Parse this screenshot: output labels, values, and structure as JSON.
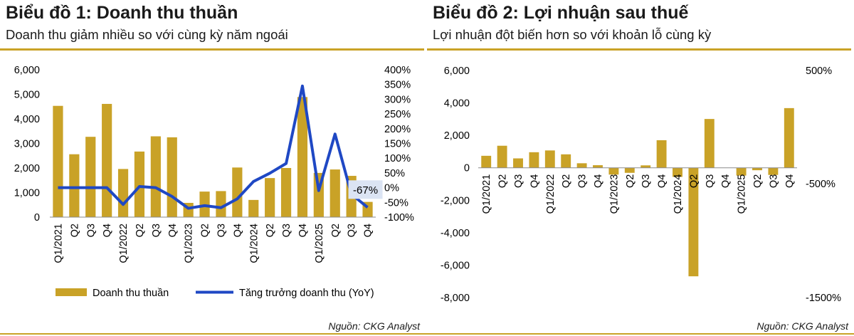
{
  "chart1": {
    "title": "Biểu đồ 1: Doanh thu thuần",
    "subtitle": "Doanh thu giảm nhiều so với cùng kỳ năm ngoái",
    "source": "Nguồn: CKG Analyst",
    "legend": {
      "bar": "Doanh thu thuần",
      "line": "Tăng trưởng doanh thu (YoY)"
    },
    "annotation": "-67%",
    "colors": {
      "bar": "#c9a227",
      "line": "#1f48c4",
      "annotation_bg": "#dbe4f3"
    }
  },
  "chart2": {
    "title": "Biểu đồ 2: Lợi nhuận sau thuế",
    "subtitle": "Lợi nhuận đột biến hơn so với khoản lỗ cùng kỳ",
    "source": "Nguồn: CKG Analyst",
    "colors": {
      "bar": "#c9a227"
    }
  },
  "chart_data": [
    {
      "type": "bar",
      "categories": [
        "Q1/2021",
        "Q2",
        "Q3",
        "Q4",
        "Q1/2022",
        "Q2",
        "Q3",
        "Q4",
        "Q1/2023",
        "Q2",
        "Q3",
        "Q4",
        "Q1/2024",
        "Q2",
        "Q3",
        "Q4",
        "Q1/2025",
        "Q2",
        "Q3",
        "Q4"
      ],
      "series": [
        {
          "name": "Doanh thu thuần",
          "type": "bar",
          "axis": "left",
          "values": [
            4530,
            2560,
            3270,
            4610,
            1960,
            2670,
            3290,
            3250,
            580,
            1040,
            1060,
            2020,
            700,
            1590,
            2000,
            4890,
            1800,
            1940,
            1680,
            620
          ]
        },
        {
          "name": "Tăng trưởng doanh thu (YoY)",
          "type": "line",
          "axis": "right",
          "values": [
            0,
            0,
            0,
            0,
            -57,
            4,
            0,
            -30,
            -70,
            -61,
            -68,
            -38,
            21,
            49,
            82,
            345,
            -10,
            182,
            -22,
            -67
          ]
        }
      ],
      "y_left": {
        "min": 0,
        "max": 6000,
        "ticks": [
          "0",
          "1,000",
          "2,000",
          "3,000",
          "4,000",
          "5,000",
          "6,000"
        ]
      },
      "y_right": {
        "min": -100,
        "max": 400,
        "ticks": [
          "-100%",
          "-50%",
          "0%",
          "50%",
          "100%",
          "150%",
          "200%",
          "250%",
          "300%",
          "350%",
          "400%"
        ]
      },
      "grid": false,
      "legend_position": "bottom"
    },
    {
      "type": "bar",
      "categories": [
        "Q1/2021",
        "Q2",
        "Q3",
        "Q4",
        "Q1/2022",
        "Q2",
        "Q3",
        "Q4",
        "Q1/2023",
        "Q2",
        "Q3",
        "Q4",
        "Q1/2024",
        "Q2",
        "Q3",
        "Q4",
        "Q1/2025",
        "Q2",
        "Q3",
        "Q4"
      ],
      "series": [
        {
          "type": "bar",
          "axis": "left",
          "values": [
            740,
            1360,
            580,
            960,
            1070,
            830,
            280,
            160,
            -420,
            -310,
            150,
            1700,
            -560,
            -6690,
            3010,
            0,
            -480,
            -150,
            -440,
            3680
          ]
        }
      ],
      "y_left": {
        "min": -8000,
        "max": 6000,
        "ticks": [
          "-8,000",
          "-6,000",
          "-4,000",
          "-2,000",
          "0",
          "2,000",
          "4,000",
          "6,000"
        ]
      },
      "y_right": {
        "ticks": [
          "500%",
          "-500%",
          "-1500%"
        ]
      },
      "grid": false
    }
  ]
}
